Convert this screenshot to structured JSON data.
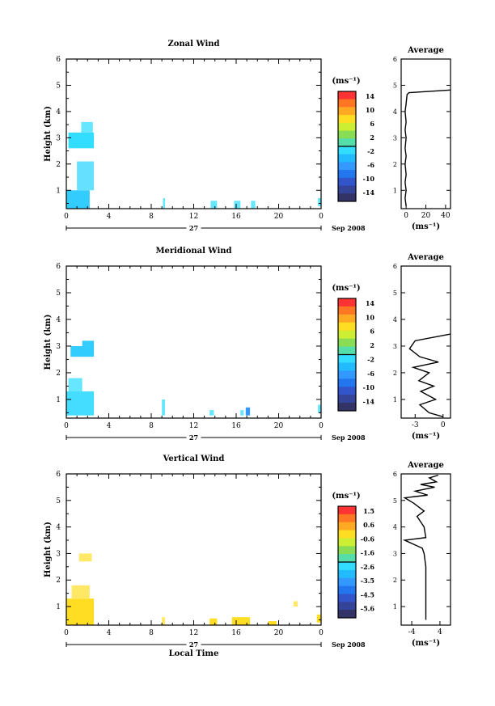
{
  "chart_data": [
    {
      "type": "heatmap",
      "title": "Zonal Wind",
      "ylabel": "Height (km)",
      "xticks": [
        "0",
        "4",
        "8",
        "12",
        "16",
        "20",
        "0"
      ],
      "date_center": "27",
      "date_right": "Sep 2008",
      "yticks": [
        "1",
        "2",
        "3",
        "4",
        "5",
        "6"
      ],
      "ylim": [
        0.3,
        6
      ],
      "colorbar": {
        "unit": "(ms⁻¹)",
        "ticks": [
          "14",
          "10",
          "6",
          "2",
          "-2",
          "-6",
          "-10",
          "-14"
        ]
      },
      "cells": [
        {
          "x0": 0.0,
          "x1": 2.2,
          "y0": 0.3,
          "y1": 1.0,
          "color": "#33ccff"
        },
        {
          "x0": 1.0,
          "x1": 2.6,
          "y0": 1.0,
          "y1": 2.1,
          "color": "#66e0ff"
        },
        {
          "x0": 0.2,
          "x1": 2.6,
          "y0": 2.6,
          "y1": 3.2,
          "color": "#33ddff"
        },
        {
          "x0": 1.4,
          "x1": 2.5,
          "y0": 3.2,
          "y1": 3.6,
          "color": "#66e6ff"
        },
        {
          "x0": 9.1,
          "x1": 9.3,
          "y0": 0.3,
          "y1": 0.7,
          "color": "#66e6ff"
        },
        {
          "x0": 13.6,
          "x1": 14.2,
          "y0": 0.3,
          "y1": 0.6,
          "color": "#66e6ff"
        },
        {
          "x0": 15.8,
          "x1": 16.4,
          "y0": 0.3,
          "y1": 0.6,
          "color": "#66e6ff"
        },
        {
          "x0": 17.4,
          "x1": 17.8,
          "y0": 0.3,
          "y1": 0.6,
          "color": "#66e6ff"
        },
        {
          "x0": 23.7,
          "x1": 24.0,
          "y0": 0.4,
          "y1": 0.7,
          "color": "#66e6ff"
        }
      ],
      "average": {
        "title": "Average",
        "xlabel": "(ms⁻¹)",
        "xticks": [
          "0",
          "20",
          "40"
        ],
        "xlim": [
          -5,
          45
        ],
        "yticks": [
          "1",
          "2",
          "3",
          "4",
          "5",
          "6"
        ],
        "ylim": [
          0.3,
          6
        ],
        "points": [
          [
            0,
            0.4
          ],
          [
            -1,
            0.7
          ],
          [
            0,
            1.0
          ],
          [
            -1,
            1.3
          ],
          [
            0,
            1.6
          ],
          [
            -1,
            2.0
          ],
          [
            0,
            2.3
          ],
          [
            -1,
            2.6
          ],
          [
            0,
            3.0
          ],
          [
            -1,
            3.3
          ],
          [
            0,
            3.6
          ],
          [
            -1,
            4.0
          ],
          [
            0,
            4.3
          ],
          [
            1,
            4.65
          ],
          [
            3,
            4.72
          ],
          [
            45,
            4.82
          ]
        ]
      }
    },
    {
      "type": "heatmap",
      "title": "Meridional Wind",
      "ylabel": "Height (km)",
      "xticks": [
        "0",
        "4",
        "8",
        "12",
        "16",
        "20",
        "0"
      ],
      "date_center": "27",
      "date_right": "Sep 2008",
      "yticks": [
        "1",
        "2",
        "3",
        "4",
        "5",
        "6"
      ],
      "ylim": [
        0.3,
        6
      ],
      "colorbar": {
        "unit": "(ms⁻¹)",
        "ticks": [
          "14",
          "10",
          "6",
          "2",
          "-2",
          "-6",
          "-10",
          "-14"
        ]
      },
      "cells": [
        {
          "x0": 0.0,
          "x1": 2.6,
          "y0": 0.4,
          "y1": 1.3,
          "color": "#44ddff"
        },
        {
          "x0": 0.2,
          "x1": 1.5,
          "y0": 1.3,
          "y1": 1.8,
          "color": "#66e6ff"
        },
        {
          "x0": 0.4,
          "x1": 2.6,
          "y0": 2.6,
          "y1": 3.0,
          "color": "#33ccff"
        },
        {
          "x0": 1.5,
          "x1": 2.6,
          "y0": 3.0,
          "y1": 3.2,
          "color": "#33ccff"
        },
        {
          "x0": 9.0,
          "x1": 9.3,
          "y0": 0.4,
          "y1": 1.0,
          "color": "#66e6ff"
        },
        {
          "x0": 13.5,
          "x1": 13.9,
          "y0": 0.4,
          "y1": 0.6,
          "color": "#66e6ff"
        },
        {
          "x0": 16.4,
          "x1": 16.7,
          "y0": 0.4,
          "y1": 0.6,
          "color": "#66e6ff"
        },
        {
          "x0": 16.9,
          "x1": 17.3,
          "y0": 0.4,
          "y1": 0.7,
          "color": "#3399ff"
        },
        {
          "x0": 23.7,
          "x1": 24.0,
          "y0": 0.5,
          "y1": 0.8,
          "color": "#66e6ff"
        }
      ],
      "average": {
        "title": "Average",
        "xlabel": "(ms⁻¹)",
        "xticks": [
          "-3",
          "0"
        ],
        "xlim": [
          -4.5,
          0.8
        ],
        "yticks": [
          "1",
          "2",
          "3",
          "4",
          "5",
          "6"
        ],
        "ylim": [
          0.3,
          6
        ],
        "points": [
          [
            0,
            0.35
          ],
          [
            -1.5,
            0.5
          ],
          [
            -2.5,
            0.8
          ],
          [
            -0.8,
            1.0
          ],
          [
            -2.4,
            1.3
          ],
          [
            -1.0,
            1.5
          ],
          [
            -2.6,
            1.7
          ],
          [
            -1.5,
            2.0
          ],
          [
            -3.2,
            2.2
          ],
          [
            -0.5,
            2.4
          ],
          [
            -2.5,
            2.6
          ],
          [
            -3.6,
            2.9
          ],
          [
            -3.0,
            3.2
          ],
          [
            0.8,
            3.45
          ]
        ]
      }
    },
    {
      "type": "heatmap",
      "title": "Vertical Wind",
      "ylabel": "Height (km)",
      "xlabel": "Local Time",
      "xticks": [
        "0",
        "4",
        "8",
        "12",
        "16",
        "20",
        "0"
      ],
      "date_center": "27",
      "date_right": "Sep 2008",
      "yticks": [
        "1",
        "2",
        "3",
        "4",
        "5",
        "6"
      ],
      "ylim": [
        0.3,
        6
      ],
      "colorbar": {
        "unit": "(ms⁻¹)",
        "ticks": [
          "1.5",
          "0.6",
          "-0.6",
          "-1.6",
          "-2.6",
          "-3.5",
          "-4.5",
          "-5.6"
        ]
      },
      "cells": [
        {
          "x0": 0.0,
          "x1": 2.6,
          "y0": 0.3,
          "y1": 1.3,
          "color": "#ffdd22"
        },
        {
          "x0": 0.5,
          "x1": 2.2,
          "y0": 1.3,
          "y1": 1.8,
          "color": "#ffe866"
        },
        {
          "x0": 1.2,
          "x1": 2.4,
          "y0": 2.7,
          "y1": 3.0,
          "color": "#ffe866"
        },
        {
          "x0": 9.0,
          "x1": 9.3,
          "y0": 0.3,
          "y1": 0.6,
          "color": "#ffe866"
        },
        {
          "x0": 13.5,
          "x1": 14.2,
          "y0": 0.3,
          "y1": 0.55,
          "color": "#ffdd22"
        },
        {
          "x0": 15.6,
          "x1": 17.3,
          "y0": 0.3,
          "y1": 0.6,
          "color": "#ffdd22"
        },
        {
          "x0": 19.0,
          "x1": 19.8,
          "y0": 0.3,
          "y1": 0.45,
          "color": "#ffdd22"
        },
        {
          "x0": 21.4,
          "x1": 21.8,
          "y0": 1.0,
          "y1": 1.2,
          "color": "#ffe866"
        },
        {
          "x0": 23.6,
          "x1": 24.0,
          "y0": 0.4,
          "y1": 0.7,
          "color": "#ffdd22"
        }
      ],
      "average": {
        "title": "Average",
        "xlabel": "(ms⁻¹)",
        "xticks": [
          "-4",
          "4"
        ],
        "xlim": [
          -7,
          7
        ],
        "yticks": [
          "1",
          "2",
          "3",
          "4",
          "5",
          "6"
        ],
        "ylim": [
          0.3,
          6
        ],
        "points": [
          [
            0,
            0.5
          ],
          [
            0,
            1.0
          ],
          [
            0,
            1.5
          ],
          [
            0,
            2.0
          ],
          [
            0,
            2.5
          ],
          [
            -0.5,
            3.0
          ],
          [
            -1,
            3.2
          ],
          [
            -6,
            3.5
          ],
          [
            0,
            3.6
          ],
          [
            -0.5,
            4.0
          ],
          [
            -2.5,
            4.4
          ],
          [
            -0.5,
            4.6
          ],
          [
            -3.5,
            4.9
          ],
          [
            -6,
            5.1
          ],
          [
            0.5,
            5.2
          ],
          [
            -3,
            5.35
          ],
          [
            2.5,
            5.5
          ],
          [
            -1.5,
            5.6
          ],
          [
            3,
            5.7
          ],
          [
            1,
            5.85
          ],
          [
            3.5,
            5.95
          ]
        ]
      }
    }
  ]
}
